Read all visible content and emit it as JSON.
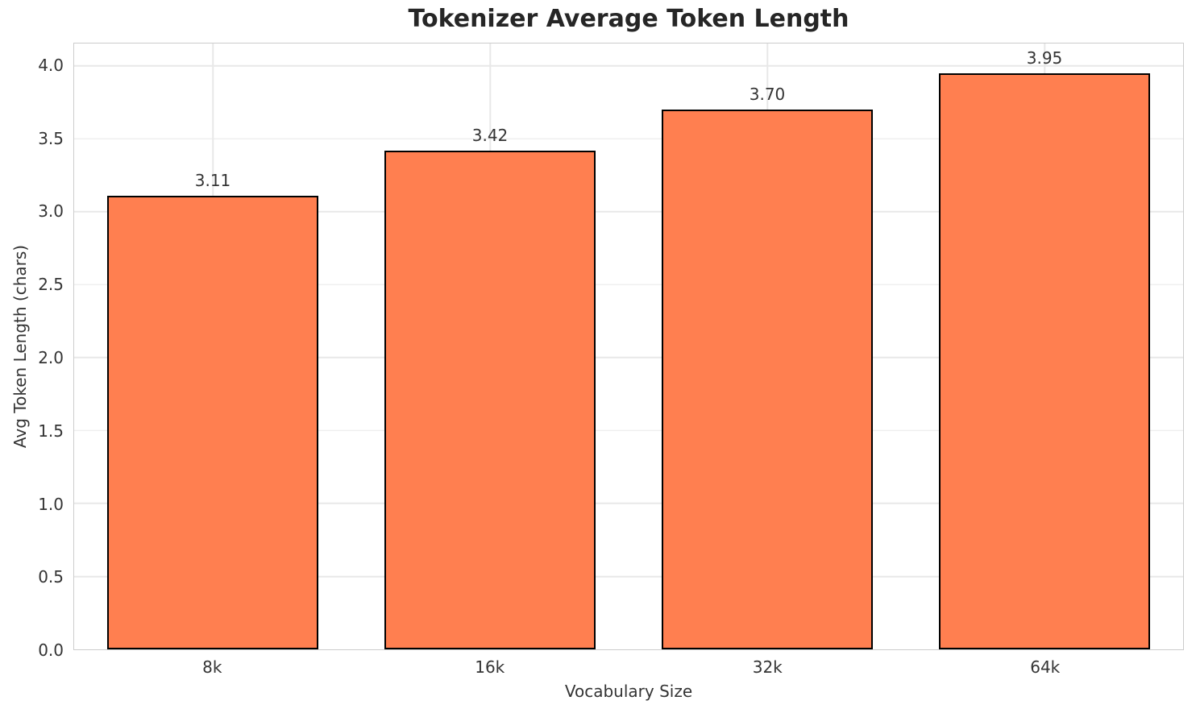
{
  "chart_data": {
    "type": "bar",
    "title": "Tokenizer Average Token Length",
    "xlabel": "Vocabulary Size",
    "ylabel": "Avg Token Length (chars)",
    "categories": [
      "8k",
      "16k",
      "32k",
      "64k"
    ],
    "values": [
      3.11,
      3.42,
      3.7,
      3.95
    ],
    "value_labels": [
      "3.11",
      "3.42",
      "3.70",
      "3.95"
    ],
    "yticks": [
      0.0,
      0.5,
      1.0,
      1.5,
      2.0,
      2.5,
      3.0,
      3.5,
      4.0
    ],
    "ytick_labels": [
      "0.0",
      "0.5",
      "1.0",
      "1.5",
      "2.0",
      "2.5",
      "3.0",
      "3.5",
      "4.0"
    ],
    "ylim": [
      0,
      4.154
    ],
    "grid": true,
    "legend_position": "none",
    "bar_width_fraction": 0.76,
    "colors": {
      "bar_fill": "#FF7F50",
      "bar_edge": "#000000",
      "grid": "#e8e8e8",
      "spine": "#cccccc",
      "title_text": "#262626",
      "tick_text": "#343434",
      "background": "#ffffff"
    }
  }
}
